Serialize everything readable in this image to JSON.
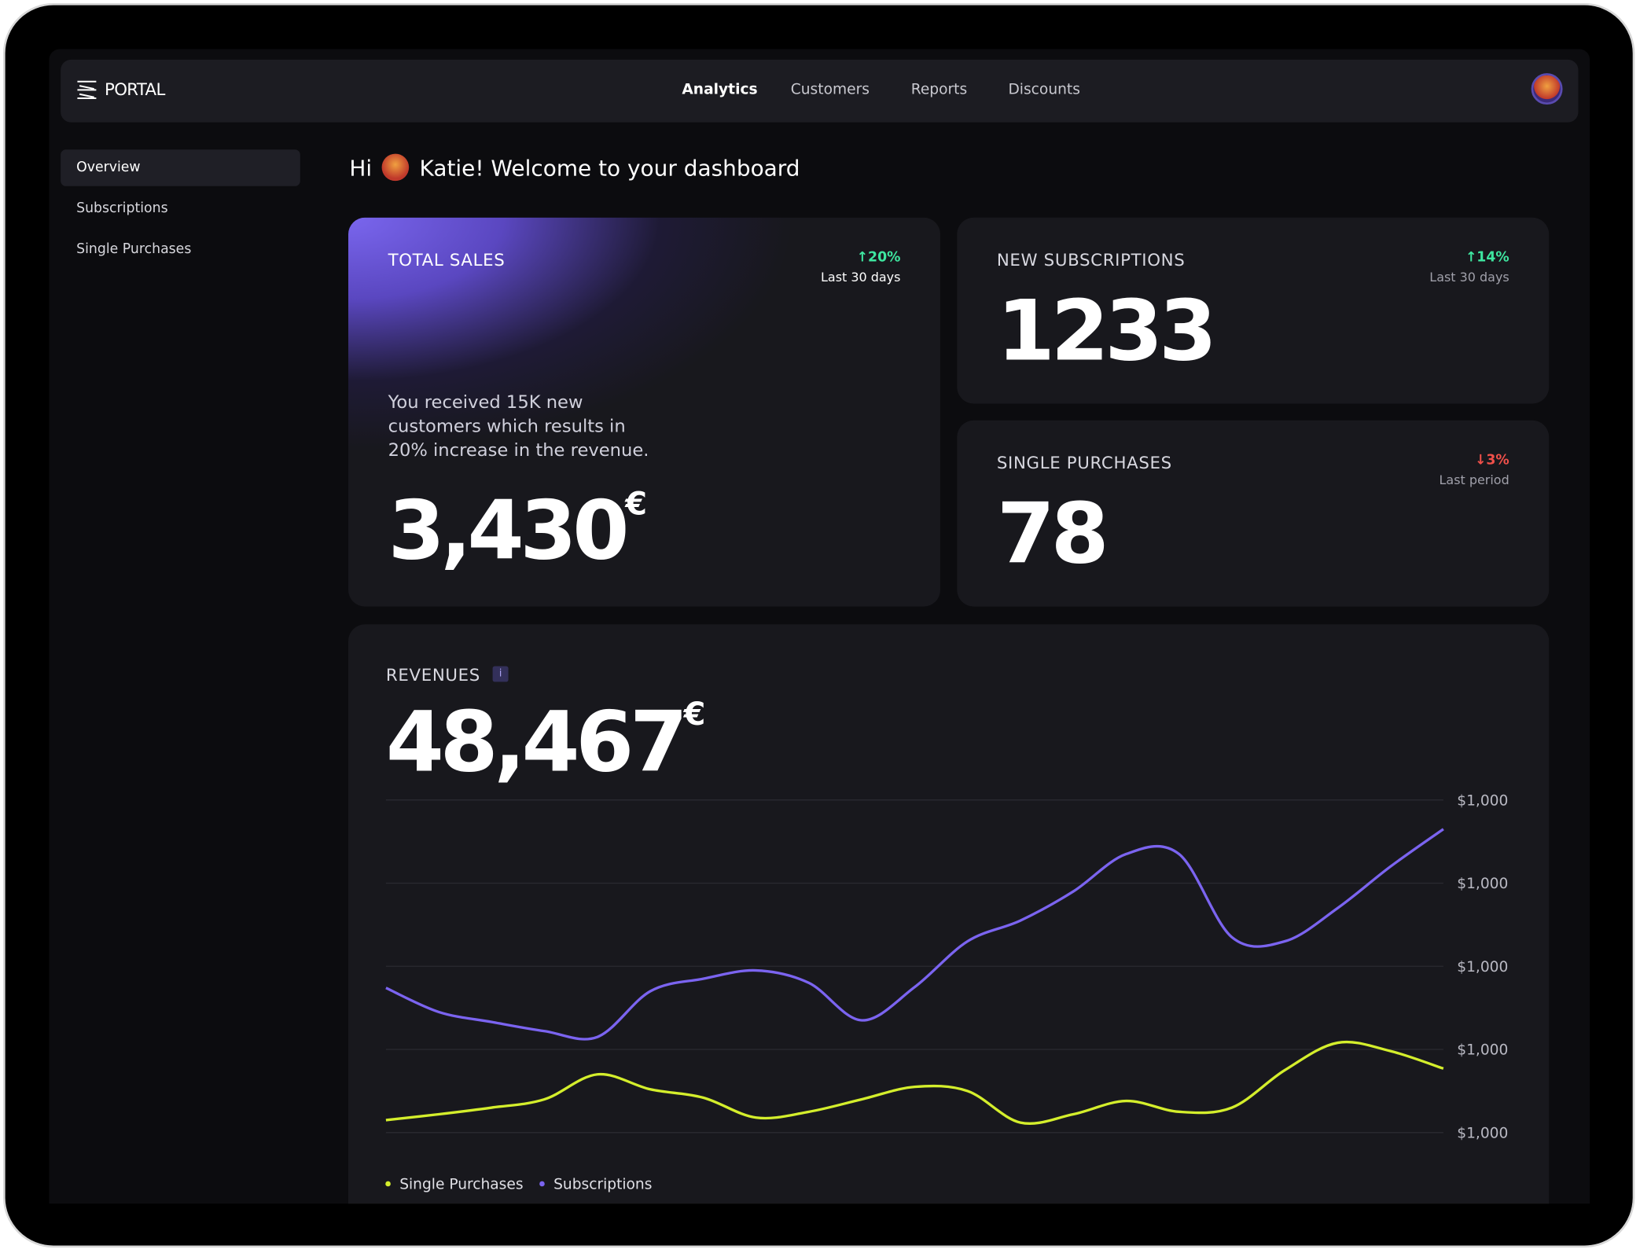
{
  "nav": {
    "brand": "PORTAL",
    "items": [
      "Analytics",
      "Customers",
      "Reports",
      "Discounts"
    ]
  },
  "sidebar": [
    "Overview",
    "Subscriptions",
    "Single Purchases"
  ],
  "greeting": {
    "prefix": "Hi",
    "text": "Katie! Welcome to your dashboard"
  },
  "cards": {
    "total_sales": {
      "title": "TOTAL SALES",
      "change": "↑20%",
      "period": "Last 30 days",
      "description": "You received 15K new customers which results in 20% increase in the revenue.",
      "value": "3,430",
      "unit": "€"
    },
    "new_subscriptions": {
      "title": "NEW SUBSCRIPTIONS",
      "change": "↑14%",
      "period": "Last 30 days",
      "value": "1233"
    },
    "single_purchases": {
      "title": "SINGLE PURCHASES",
      "change": "↓3%",
      "period": "Last period",
      "value": "78"
    }
  },
  "revenues": {
    "title": "REVENUES",
    "info": "i",
    "value": "48,467",
    "unit": "€"
  },
  "chart_data": {
    "type": "line",
    "ylim": [
      0,
      4
    ],
    "yticks": [
      {
        "value": 0,
        "label": "$1,000"
      },
      {
        "value": 1,
        "label": "$1,000"
      },
      {
        "value": 2,
        "label": "$1,000"
      },
      {
        "value": 3,
        "label": "$1,000"
      },
      {
        "value": 4,
        "label": "$1,000"
      }
    ],
    "grid": true,
    "series": [
      {
        "name": "Single Purchases",
        "color": "#d4ee2c",
        "values": [
          0.15,
          0.22,
          0.3,
          0.4,
          0.7,
          0.52,
          0.42,
          0.18,
          0.25,
          0.4,
          0.55,
          0.5,
          0.12,
          0.22,
          0.38,
          0.25,
          0.3,
          0.75,
          1.08,
          0.98,
          0.77
        ]
      },
      {
        "name": "Subscriptions",
        "color": "#7b64f0",
        "values": [
          1.74,
          1.45,
          1.33,
          1.22,
          1.15,
          1.7,
          1.85,
          1.95,
          1.8,
          1.35,
          1.75,
          2.3,
          2.55,
          2.9,
          3.35,
          3.35,
          2.35,
          2.3,
          2.7,
          3.2,
          3.65
        ]
      }
    ]
  }
}
